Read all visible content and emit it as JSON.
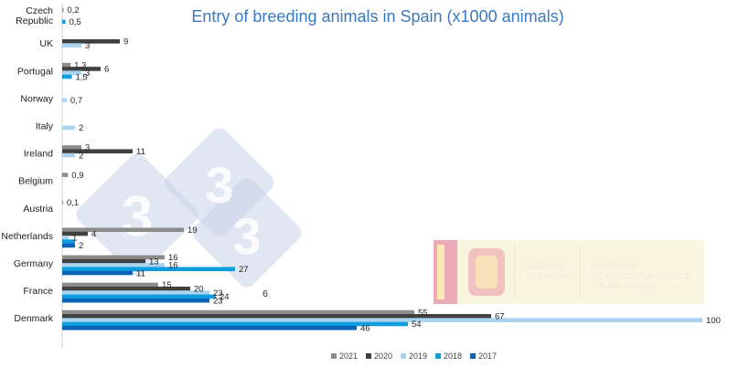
{
  "chart_data": {
    "type": "bar",
    "orientation": "horizontal",
    "title": "Entry of breeding animals in Spain (x1000 animals)",
    "categories": [
      "Czech Republic",
      "UK",
      "Portugal",
      "Norway",
      "Italy",
      "Ireland",
      "Belgium",
      "Austria",
      "Netherlands",
      "Germany",
      "France",
      "Denmark"
    ],
    "series": [
      {
        "name": "2021",
        "color": "#8c8c8c",
        "values": [
          0.2,
          null,
          1.3,
          null,
          null,
          3,
          0.9,
          0.1,
          19,
          16,
          15,
          55
        ],
        "labels": [
          "0,2",
          "",
          "1,3",
          "",
          "",
          "3",
          "0,9",
          "0,1",
          "19",
          "16",
          "15",
          "55"
        ]
      },
      {
        "name": "2020",
        "color": "#404040",
        "values": [
          null,
          9,
          6,
          null,
          null,
          11,
          null,
          null,
          4,
          13,
          20,
          67
        ],
        "labels": [
          "",
          "9",
          "6",
          "",
          "",
          "11",
          "",
          "",
          "4",
          "13",
          "20",
          "67"
        ]
      },
      {
        "name": "2019",
        "color": "#a9d3f0",
        "values": [
          null,
          3,
          3,
          0.7,
          2,
          2,
          null,
          null,
          1,
          16,
          23,
          100
        ],
        "labels": [
          "",
          "3",
          "3",
          "0,7",
          "2",
          "2",
          "",
          "",
          "1",
          "16",
          "23",
          "100"
        ]
      },
      {
        "name": "2018",
        "color": "#0e9ee0",
        "values": [
          0.5,
          null,
          1.5,
          null,
          null,
          null,
          null,
          null,
          2,
          27,
          24,
          54
        ],
        "labels": [
          "0,5",
          "",
          "1,5",
          "",
          "",
          "",
          "",
          "",
          "",
          "27",
          "24",
          "54"
        ]
      },
      {
        "name": "2017",
        "color": "#0a63b5",
        "values": [
          null,
          null,
          null,
          null,
          null,
          null,
          null,
          null,
          2,
          11,
          23,
          46
        ],
        "labels": [
          "",
          "",
          "",
          "",
          "",
          "",
          "",
          "",
          "2",
          "11",
          "23",
          "46"
        ]
      }
    ],
    "xlim": [
      0,
      100
    ],
    "grid": false,
    "legend_position": "bottom",
    "free_labels": [
      "6"
    ]
  },
  "logo": {
    "left_text": [
      "GOBIERNO",
      "DE ESPAÑA"
    ],
    "right_text": [
      "MINISTERIO",
      "DE AGRICULTURA, PESCA",
      "Y ALIMENTACIÓN"
    ]
  },
  "watermark": "333"
}
